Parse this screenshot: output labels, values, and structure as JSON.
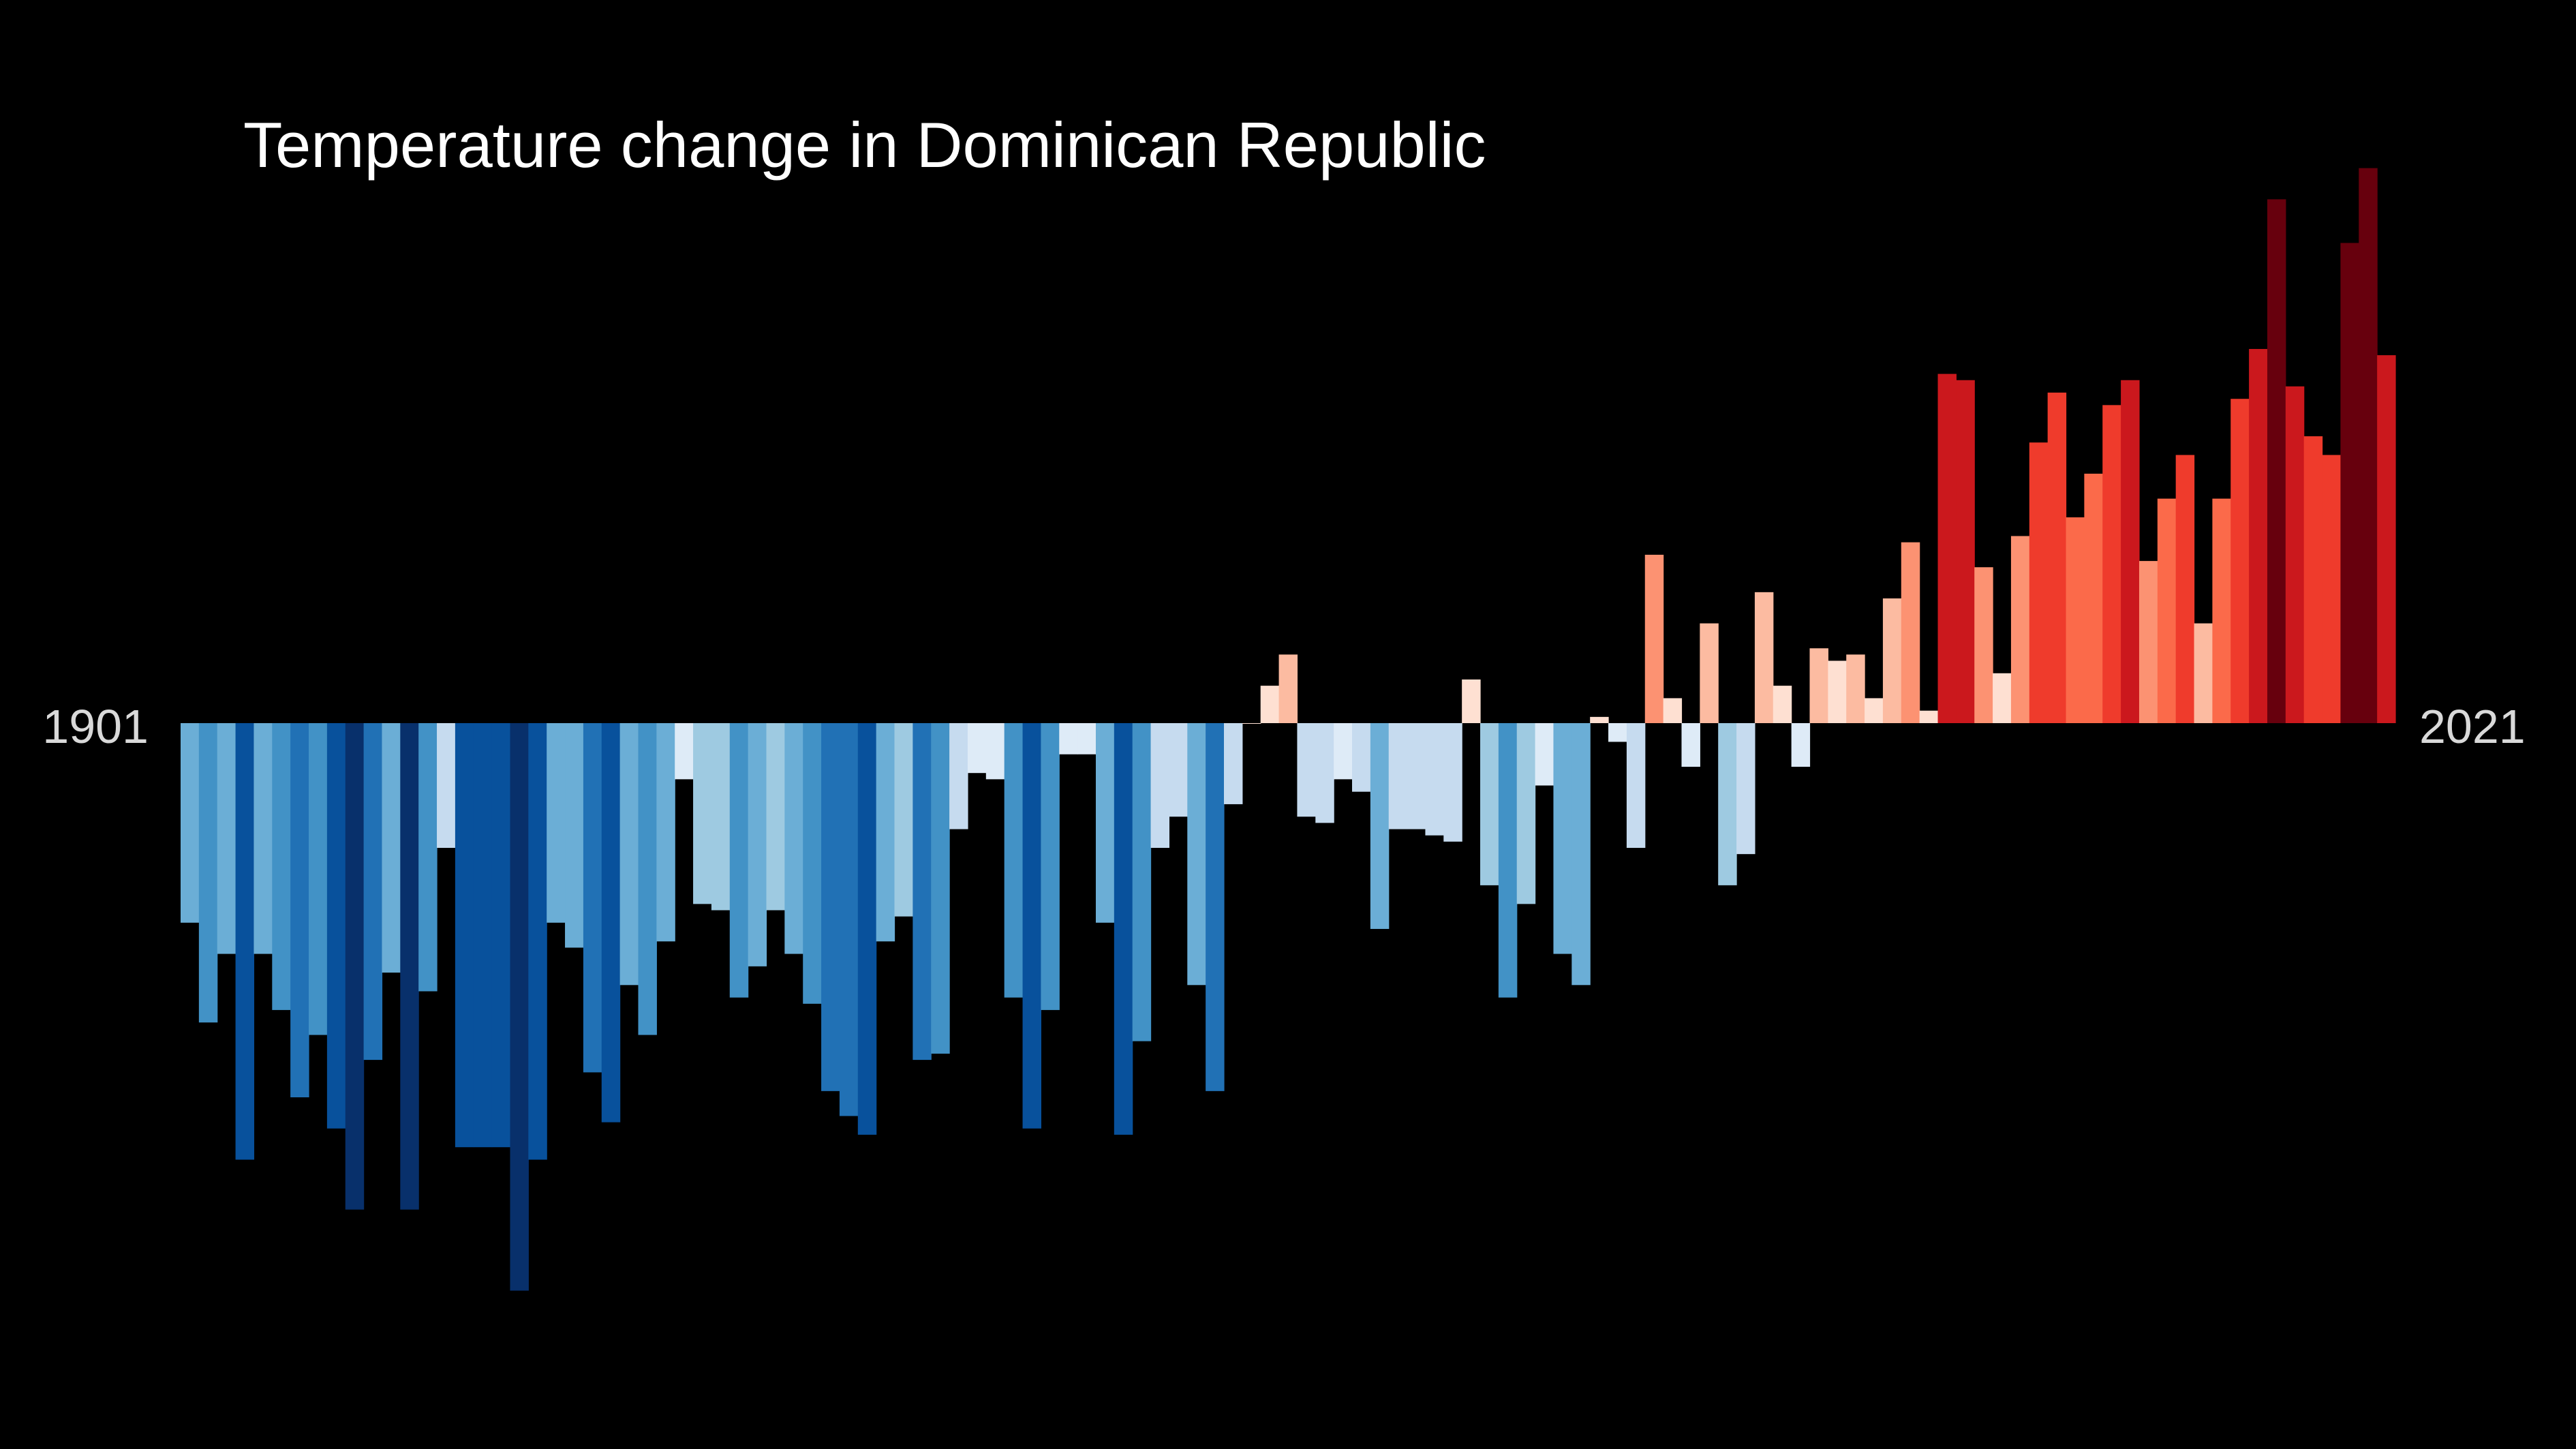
{
  "chart_data": {
    "type": "bar",
    "title": "Temperature change in Dominican Republic",
    "start_label": "1901",
    "end_label": "2021",
    "x_start": 1901,
    "x_end": 2021,
    "value_unit": "°C anomaly (relative)",
    "ylim": [
      -0.9,
      0.9
    ],
    "grid": false,
    "legend": "none",
    "values": [
      -0.32,
      -0.48,
      -0.37,
      -0.7,
      -0.37,
      -0.46,
      -0.6,
      -0.5,
      -0.65,
      -0.78,
      -0.54,
      -0.4,
      -0.78,
      -0.43,
      -0.2,
      -0.68,
      -0.68,
      -0.68,
      -0.91,
      -0.7,
      -0.32,
      -0.36,
      -0.56,
      -0.64,
      -0.42,
      -0.5,
      -0.35,
      -0.09,
      -0.29,
      -0.3,
      -0.44,
      -0.39,
      -0.3,
      -0.37,
      -0.45,
      -0.59,
      -0.63,
      -0.66,
      -0.35,
      -0.31,
      -0.54,
      -0.53,
      -0.17,
      -0.08,
      -0.09,
      -0.44,
      -0.65,
      -0.46,
      -0.05,
      -0.05,
      -0.32,
      -0.66,
      -0.51,
      -0.2,
      -0.15,
      -0.42,
      -0.59,
      -0.13,
      0.0,
      0.06,
      0.11,
      -0.15,
      -0.16,
      -0.09,
      -0.11,
      -0.33,
      -0.17,
      -0.17,
      -0.18,
      -0.19,
      0.07,
      -0.26,
      -0.44,
      -0.29,
      -0.1,
      -0.37,
      -0.42,
      0.01,
      -0.03,
      -0.2,
      0.27,
      0.04,
      -0.07,
      0.16,
      -0.26,
      -0.21,
      0.21,
      0.06,
      -0.07,
      0.12,
      0.1,
      0.11,
      0.04,
      0.2,
      0.29,
      0.02,
      0.56,
      0.55,
      0.25,
      0.08,
      0.3,
      0.45,
      0.53,
      0.33,
      0.4,
      0.51,
      0.55,
      0.26,
      0.36,
      0.43,
      0.16,
      0.36,
      0.52,
      0.6,
      0.84,
      0.54,
      0.46,
      0.43,
      0.77,
      0.89,
      0.59
    ]
  }
}
